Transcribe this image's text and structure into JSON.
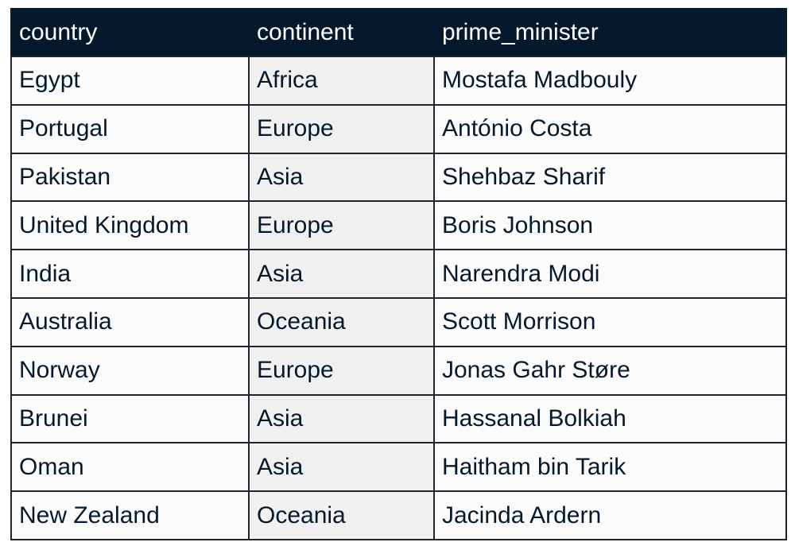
{
  "table": {
    "columns": [
      "country",
      "continent",
      "prime_minister"
    ],
    "rows": [
      {
        "country": "Egypt",
        "continent": "Africa",
        "prime_minister": "Mostafa Madbouly"
      },
      {
        "country": "Portugal",
        "continent": "Europe",
        "prime_minister": "António Costa"
      },
      {
        "country": "Pakistan",
        "continent": "Asia",
        "prime_minister": "Shehbaz Sharif"
      },
      {
        "country": "United Kingdom",
        "continent": "Europe",
        "prime_minister": "Boris Johnson"
      },
      {
        "country": "India",
        "continent": "Asia",
        "prime_minister": "Narendra Modi"
      },
      {
        "country": "Australia",
        "continent": "Oceania",
        "prime_minister": "Scott Morrison"
      },
      {
        "country": "Norway",
        "continent": "Europe",
        "prime_minister": "Jonas Gahr Støre"
      },
      {
        "country": "Brunei",
        "continent": "Asia",
        "prime_minister": "Hassanal Bolkiah"
      },
      {
        "country": "Oman",
        "continent": "Asia",
        "prime_minister": "Haitham bin Tarik"
      },
      {
        "country": "New Zealand",
        "continent": "Oceania",
        "prime_minister": "Jacinda Ardern"
      }
    ]
  },
  "colors": {
    "header_background": "#05192d",
    "header_text": "#ffffff",
    "cell_background": "#fbfbfc",
    "continent_cell_background": "#f0f0f0",
    "border": "#1e2430",
    "text": "#05192d"
  }
}
